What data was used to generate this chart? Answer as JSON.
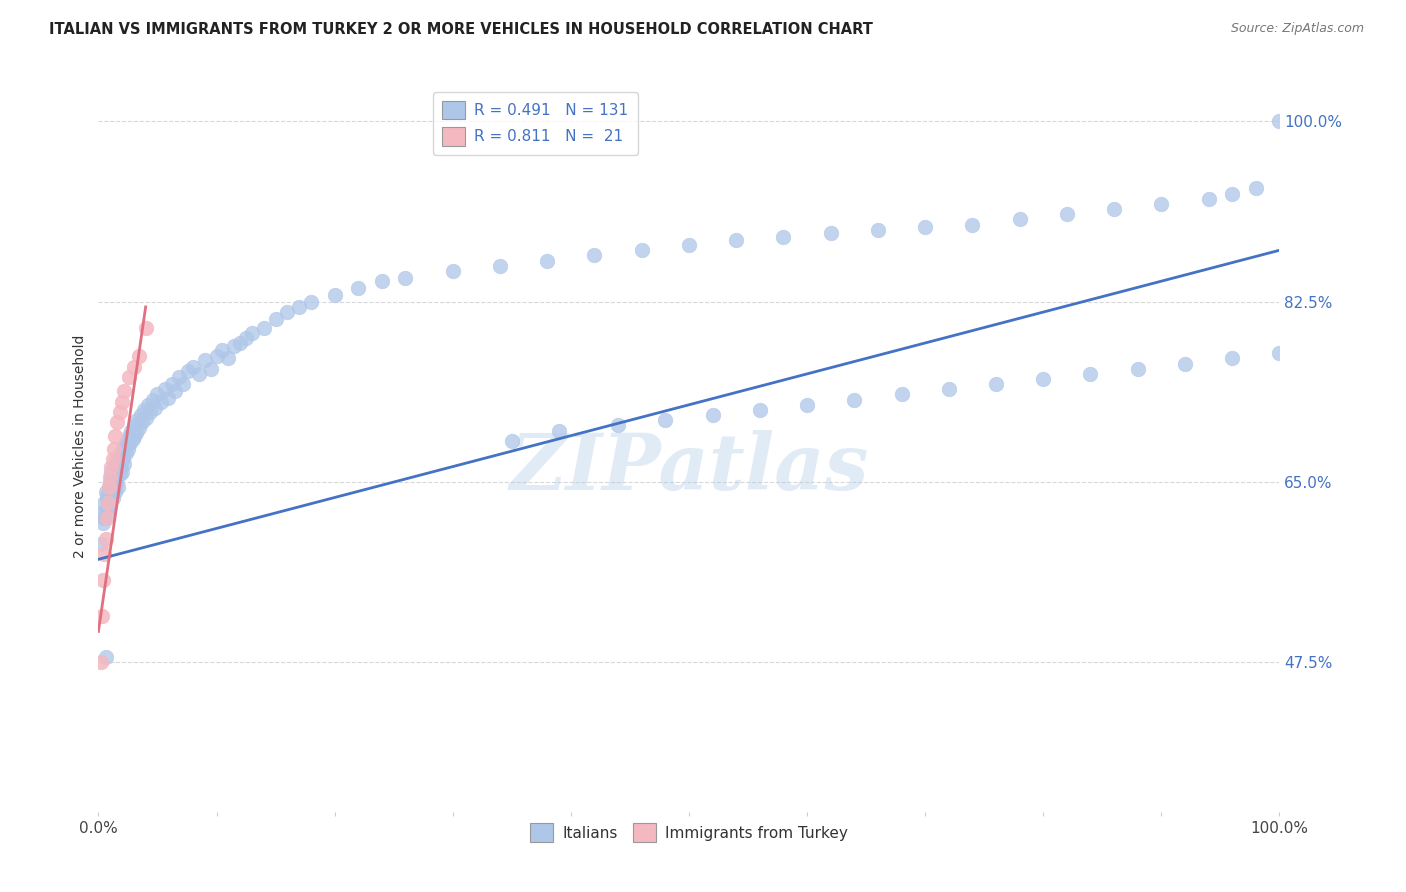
{
  "title": "ITALIAN VS IMMIGRANTS FROM TURKEY 2 OR MORE VEHICLES IN HOUSEHOLD CORRELATION CHART",
  "source": "Source: ZipAtlas.com",
  "ylabel": "2 or more Vehicles in Household",
  "xlim": [
    0,
    1.0
  ],
  "ylim": [
    0.33,
    1.04
  ],
  "ytick_positions": [
    0.475,
    0.65,
    0.825,
    1.0
  ],
  "ytick_labels": [
    "47.5%",
    "65.0%",
    "82.5%",
    "100.0%"
  ],
  "xtick_positions": [
    0.0,
    0.1,
    0.2,
    0.3,
    0.4,
    0.5,
    0.6,
    0.7,
    0.8,
    0.9,
    1.0
  ],
  "grid_color": "#d8d8d8",
  "background_color": "#ffffff",
  "italian_color": "#aec6e8",
  "turkey_color": "#f4b8c1",
  "line_italian_color": "#4472c4",
  "line_turkey_color": "#e07080",
  "legend_R_italian": "0.491",
  "legend_N_italian": "131",
  "legend_R_turkey": "0.811",
  "legend_N_turkey": " 21",
  "watermark": "ZIPatlas",
  "italian_scatter_x": [
    0.002,
    0.003,
    0.004,
    0.005,
    0.005,
    0.006,
    0.006,
    0.007,
    0.007,
    0.008,
    0.008,
    0.008,
    0.009,
    0.009,
    0.009,
    0.01,
    0.01,
    0.01,
    0.011,
    0.011,
    0.011,
    0.012,
    0.012,
    0.013,
    0.013,
    0.013,
    0.014,
    0.014,
    0.015,
    0.015,
    0.015,
    0.016,
    0.016,
    0.017,
    0.017,
    0.018,
    0.018,
    0.019,
    0.019,
    0.02,
    0.02,
    0.021,
    0.022,
    0.022,
    0.023,
    0.024,
    0.025,
    0.026,
    0.027,
    0.028,
    0.029,
    0.03,
    0.031,
    0.032,
    0.033,
    0.034,
    0.036,
    0.037,
    0.039,
    0.04,
    0.042,
    0.044,
    0.046,
    0.048,
    0.05,
    0.053,
    0.056,
    0.059,
    0.062,
    0.065,
    0.068,
    0.072,
    0.076,
    0.08,
    0.085,
    0.09,
    0.095,
    0.1,
    0.105,
    0.11,
    0.115,
    0.12,
    0.125,
    0.13,
    0.14,
    0.15,
    0.16,
    0.17,
    0.18,
    0.2,
    0.22,
    0.24,
    0.26,
    0.3,
    0.34,
    0.38,
    0.42,
    0.46,
    0.5,
    0.54,
    0.58,
    0.62,
    0.66,
    0.7,
    0.74,
    0.78,
    0.82,
    0.86,
    0.9,
    0.94,
    0.96,
    0.98,
    1.0,
    0.35,
    0.39,
    0.44,
    0.48,
    0.52,
    0.56,
    0.6,
    0.64,
    0.68,
    0.72,
    0.76,
    0.8,
    0.84,
    0.88,
    0.92,
    0.96,
    1.0,
    0.006
  ],
  "italian_scatter_y": [
    0.59,
    0.62,
    0.61,
    0.63,
    0.615,
    0.64,
    0.622,
    0.635,
    0.625,
    0.618,
    0.628,
    0.638,
    0.632,
    0.645,
    0.625,
    0.64,
    0.65,
    0.628,
    0.655,
    0.638,
    0.66,
    0.645,
    0.635,
    0.652,
    0.642,
    0.665,
    0.655,
    0.64,
    0.66,
    0.648,
    0.67,
    0.655,
    0.668,
    0.662,
    0.645,
    0.675,
    0.658,
    0.665,
    0.672,
    0.68,
    0.66,
    0.672,
    0.685,
    0.668,
    0.678,
    0.69,
    0.682,
    0.695,
    0.688,
    0.7,
    0.692,
    0.695,
    0.705,
    0.698,
    0.71,
    0.702,
    0.715,
    0.708,
    0.72,
    0.712,
    0.725,
    0.718,
    0.73,
    0.722,
    0.735,
    0.728,
    0.74,
    0.732,
    0.745,
    0.738,
    0.752,
    0.745,
    0.758,
    0.762,
    0.755,
    0.768,
    0.76,
    0.772,
    0.778,
    0.77,
    0.782,
    0.785,
    0.79,
    0.795,
    0.8,
    0.808,
    0.815,
    0.82,
    0.825,
    0.832,
    0.838,
    0.845,
    0.848,
    0.855,
    0.86,
    0.865,
    0.87,
    0.875,
    0.88,
    0.885,
    0.888,
    0.892,
    0.895,
    0.898,
    0.9,
    0.905,
    0.91,
    0.915,
    0.92,
    0.925,
    0.93,
    0.935,
    1.0,
    0.69,
    0.7,
    0.705,
    0.71,
    0.715,
    0.72,
    0.725,
    0.73,
    0.735,
    0.74,
    0.745,
    0.75,
    0.755,
    0.76,
    0.765,
    0.77,
    0.775,
    0.48
  ],
  "turkey_scatter_x": [
    0.002,
    0.003,
    0.004,
    0.005,
    0.006,
    0.007,
    0.008,
    0.009,
    0.01,
    0.011,
    0.012,
    0.013,
    0.014,
    0.016,
    0.018,
    0.02,
    0.022,
    0.026,
    0.03,
    0.034,
    0.04
  ],
  "turkey_scatter_y": [
    0.475,
    0.52,
    0.555,
    0.58,
    0.595,
    0.615,
    0.63,
    0.645,
    0.655,
    0.665,
    0.672,
    0.682,
    0.695,
    0.708,
    0.718,
    0.728,
    0.738,
    0.752,
    0.762,
    0.772,
    0.8
  ],
  "italian_line_x0": 0.0,
  "italian_line_y0": 0.575,
  "italian_line_x1": 1.0,
  "italian_line_y1": 0.875,
  "turkey_line_x0": 0.0,
  "turkey_line_y0": 0.505,
  "turkey_line_x1": 0.04,
  "turkey_line_y1": 0.82
}
